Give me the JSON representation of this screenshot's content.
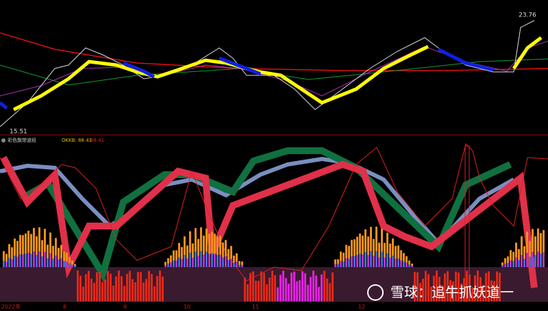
{
  "price_panel": {
    "high_label": "23.76",
    "low_label": "15.51"
  },
  "indicator_panel": {
    "name": "彩色飘带波段",
    "okkb": "OKKB: 88.41",
    "value": "88.41"
  },
  "time_axis": {
    "labels": [
      "2022年",
      "8",
      "9",
      "10",
      "11",
      "12"
    ]
  },
  "watermark": "雪球：追牛抓妖道一"
}
